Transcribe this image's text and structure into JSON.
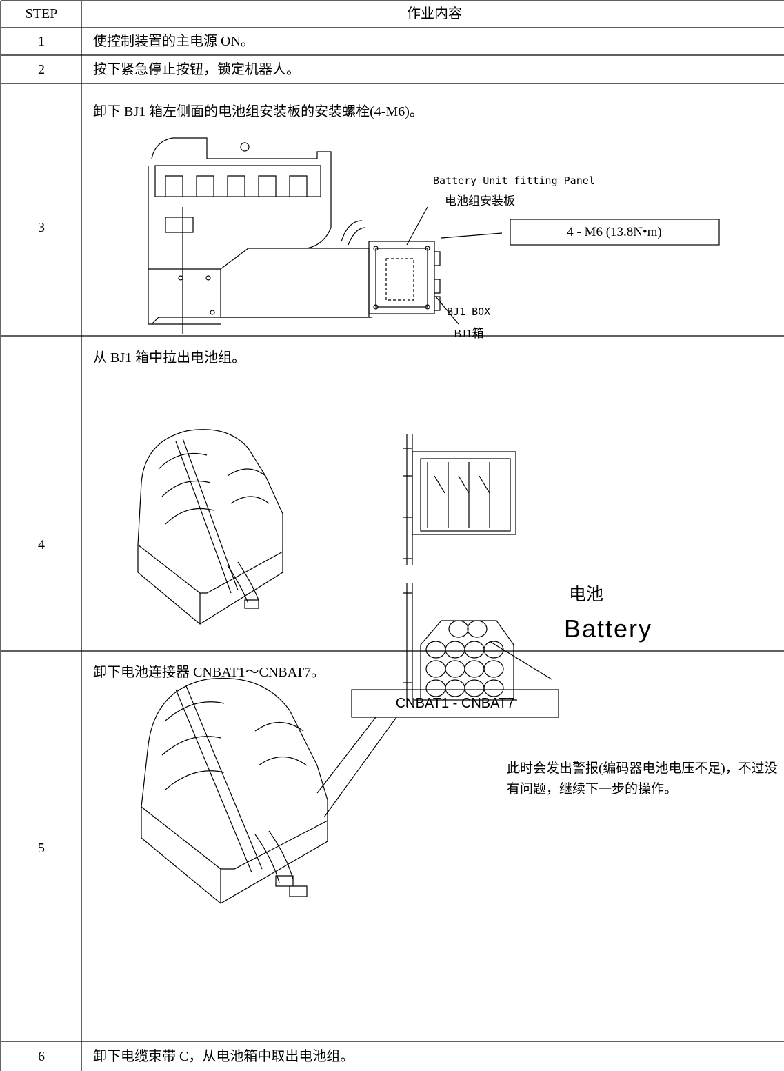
{
  "table": {
    "header": [
      "STEP",
      "作业内容"
    ],
    "rows": [
      {
        "step": 1,
        "text": "使控制装置的主电源 ON。"
      },
      {
        "step": 2,
        "text": "按下紧急停止按钮，锁定机器人。"
      },
      {
        "step": 3,
        "text": "卸下 BJ1 箱左侧面的电池组安装板的安装螺栓(4-M6)。",
        "labels": [
          "Battery Unit fitting Panel",
          "电池组安装板",
          "4 - M6 (13.8N•m)",
          "BJ1 BOX",
          "BJ1箱"
        ]
      },
      {
        "step": 4,
        "text": "从 BJ1 箱中拉出电池组。",
        "labels": [
          "电池",
          "Battery"
        ]
      },
      {
        "step": 5,
        "text": "卸下电池连接器 CNBAT1～CNBAT7。",
        "labels": [
          "CNBAT1 - CNBAT7",
          "此时会发出警报(编码器电池电压不足)，不过没有问题，继续下一步的操作。"
        ]
      },
      {
        "step": 6,
        "text": "卸下电缆束带 C，从电池箱中取出电池组。"
      }
    ]
  }
}
